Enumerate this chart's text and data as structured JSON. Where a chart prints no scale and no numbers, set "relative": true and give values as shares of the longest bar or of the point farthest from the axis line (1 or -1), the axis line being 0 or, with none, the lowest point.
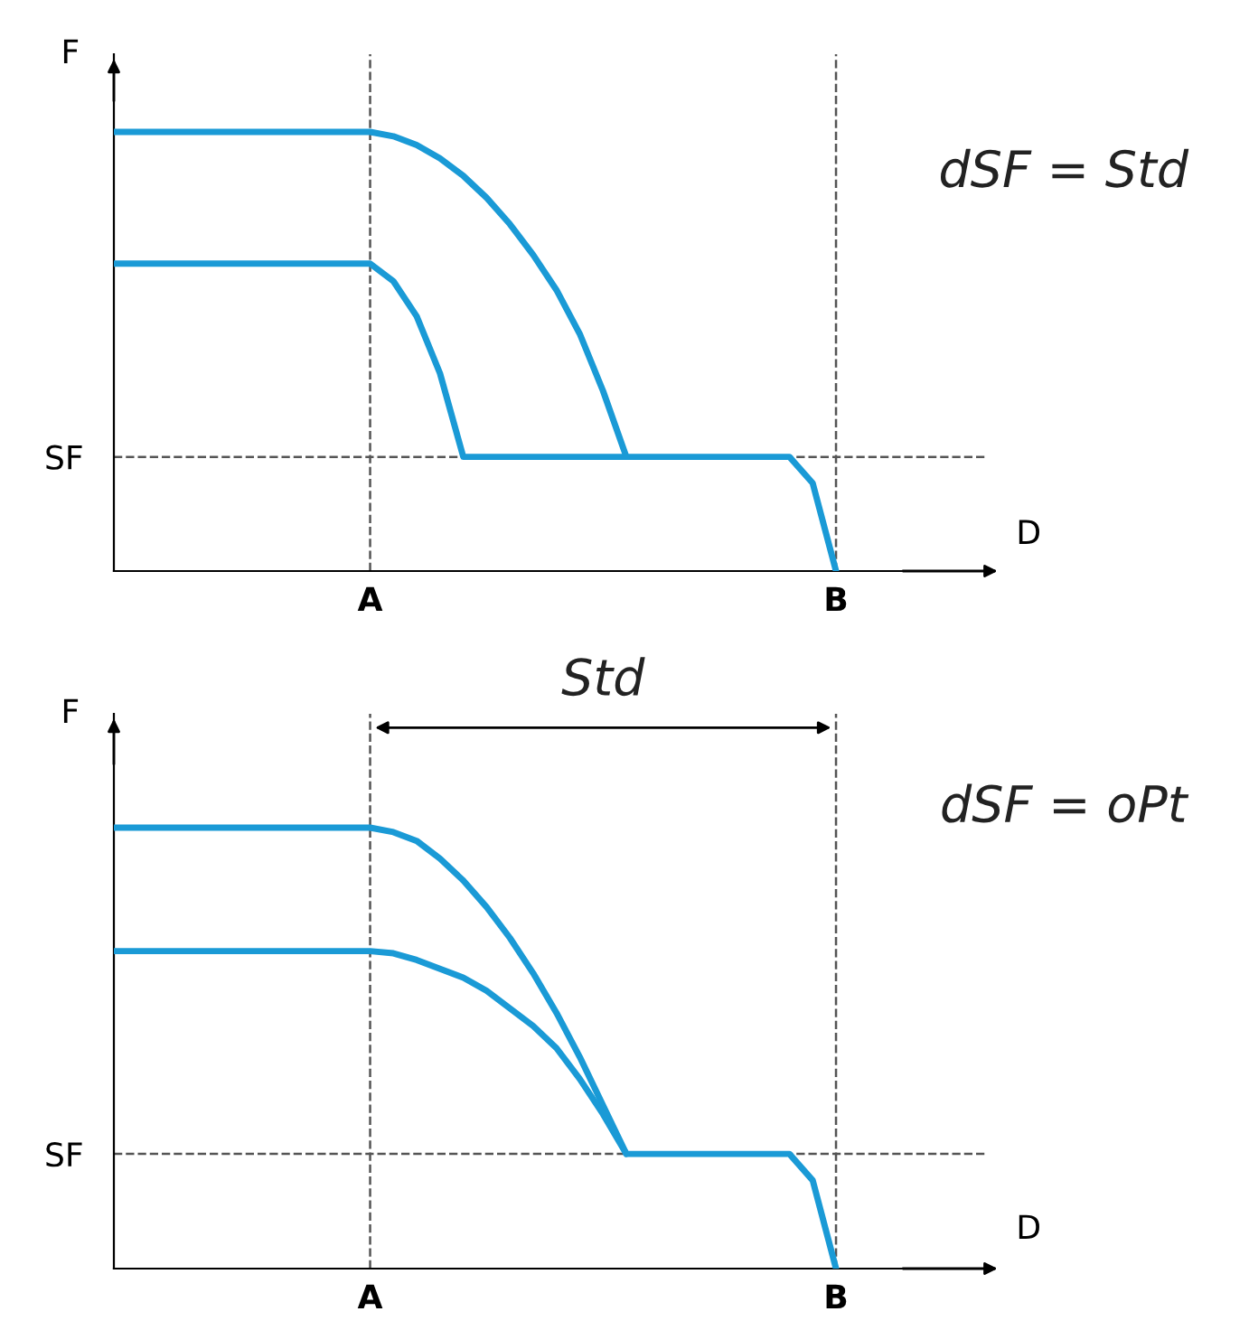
{
  "chart_data": [
    {
      "type": "line",
      "relative": true,
      "xlabel": "D",
      "ylabel": "F",
      "grid": "x",
      "marker": "none",
      "line_style": "solid",
      "categories": [
        null,
        null,
        null,
        null,
        null,
        null,
        null,
        null,
        null,
        null,
        null,
        "A",
        null,
        null,
        null,
        null,
        null,
        null,
        null,
        null,
        null,
        null,
        null,
        null,
        null,
        null,
        null,
        null,
        null,
        null,
        null,
        "B",
        null,
        null,
        null,
        null,
        null,
        null
      ],
      "series": [
        {
          "color": "#1a9ad6",
          "values": [
            1,
            1,
            1,
            1,
            1,
            1,
            1,
            1,
            1,
            1,
            1,
            1,
            0.99,
            0.97,
            0.94,
            0.9,
            0.85,
            0.79,
            0.72,
            0.64,
            0.54,
            0.41,
            0.26,
            0.26,
            0.26,
            0.26,
            0.26,
            0.26,
            0.26,
            0.26,
            0.2,
            0,
            null,
            null,
            null,
            null,
            null,
            null
          ]
        },
        {
          "color": "#1a9ad6",
          "values": [
            0.7,
            0.7,
            0.7,
            0.7,
            0.7,
            0.7,
            0.7,
            0.7,
            0.7,
            0.7,
            0.7,
            0.7,
            0.66,
            0.58,
            0.45,
            0.26,
            0.26,
            0.26,
            0.26,
            0.26,
            0.26,
            0.26,
            0.26,
            null,
            null,
            null,
            null,
            null,
            null,
            null,
            null,
            null,
            null,
            null,
            null,
            null,
            null,
            null
          ]
        }
      ],
      "ref_lines": [
        {
          "axis": "y",
          "value": 0.26,
          "label": "SF",
          "line_style": "dashed",
          "color": "#555555"
        }
      ],
      "annotations": [
        "dSF = Std"
      ]
    },
    {
      "type": "line",
      "relative": true,
      "xlabel": "D",
      "ylabel": "F",
      "grid": "x",
      "marker": "none",
      "line_style": "solid",
      "categories": [
        null,
        null,
        null,
        null,
        null,
        null,
        null,
        null,
        null,
        null,
        null,
        "A",
        null,
        null,
        null,
        null,
        null,
        null,
        null,
        null,
        null,
        null,
        null,
        null,
        null,
        null,
        null,
        null,
        null,
        null,
        null,
        "B",
        null,
        null,
        null,
        null,
        null,
        null
      ],
      "series": [
        {
          "color": "#1a9ad6",
          "values": [
            1,
            1,
            1,
            1,
            1,
            1,
            1,
            1,
            1,
            1,
            1,
            1,
            0.99,
            0.97,
            0.93,
            0.88,
            0.82,
            0.75,
            0.67,
            0.58,
            0.48,
            0.37,
            0.26,
            0.26,
            0.26,
            0.26,
            0.26,
            0.26,
            0.26,
            0.26,
            0.2,
            0,
            null,
            null,
            null,
            null,
            null,
            null
          ]
        },
        {
          "color": "#1a9ad6",
          "values": [
            0.72,
            0.72,
            0.72,
            0.72,
            0.72,
            0.72,
            0.72,
            0.72,
            0.72,
            0.72,
            0.72,
            0.72,
            0.715,
            0.7,
            0.68,
            0.66,
            0.63,
            0.59,
            0.55,
            0.5,
            0.43,
            0.35,
            0.26,
            null,
            null,
            null,
            null,
            null,
            null,
            null,
            null,
            null,
            null,
            null,
            null,
            null,
            null,
            null
          ]
        }
      ],
      "ref_lines": [
        {
          "axis": "y",
          "value": 0.26,
          "label": "SF",
          "line_style": "dashed",
          "color": "#555555"
        }
      ],
      "annotations": [
        "Std",
        "dSF = oPt"
      ]
    }
  ]
}
